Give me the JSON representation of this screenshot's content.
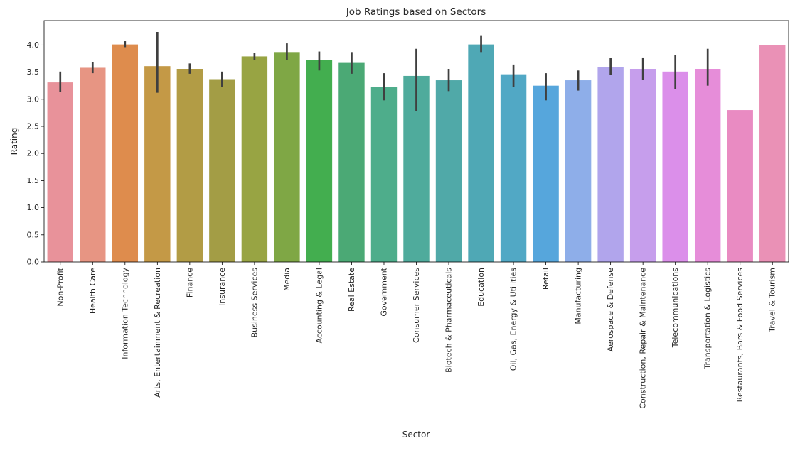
{
  "chart_data": {
    "type": "bar",
    "title": "Job Ratings based on Sectors",
    "xlabel": "Sector",
    "ylabel": "Rating",
    "ylim": [
      0,
      4.45
    ],
    "yticks": [
      0.0,
      0.5,
      1.0,
      1.5,
      2.0,
      2.5,
      3.0,
      3.5,
      4.0
    ],
    "ytick_labels": [
      "0.0",
      "0.5",
      "1.0",
      "1.5",
      "2.0",
      "2.5",
      "3.0",
      "3.5",
      "4.0"
    ],
    "grid": false,
    "error_bars": true,
    "categories": [
      "Non-Profit",
      "Health Care",
      "Information Technology",
      "Arts, Entertainment & Recreation",
      "Finance",
      "Insurance",
      "Business Services",
      "Media",
      "Accounting & Legal",
      "Real Estate",
      "Government",
      "Consumer Services",
      "Biotech & Pharmaceuticals",
      "Education",
      "Oil, Gas, Energy & Utilities",
      "Retail",
      "Manufacturing",
      "Aerospace & Defense",
      "Construction, Repair & Maintenance",
      "Telecommunications",
      "Transportation & Logistics",
      "Restaurants, Bars & Food Services",
      "Travel & Tourism"
    ],
    "values": [
      3.31,
      3.58,
      4.01,
      3.61,
      3.56,
      3.37,
      3.79,
      3.87,
      3.72,
      3.67,
      3.22,
      3.43,
      3.35,
      4.01,
      3.46,
      3.25,
      3.35,
      3.59,
      3.56,
      3.51,
      3.56,
      2.8,
      4.0
    ],
    "ci_low": [
      3.13,
      3.48,
      3.96,
      3.12,
      3.47,
      3.23,
      3.73,
      3.73,
      3.53,
      3.47,
      2.98,
      2.78,
      3.15,
      3.87,
      3.23,
      2.98,
      3.16,
      3.45,
      3.36,
      3.19,
      3.25,
      2.8,
      4.0
    ],
    "ci_high": [
      3.51,
      3.69,
      4.07,
      4.24,
      3.66,
      3.51,
      3.85,
      4.03,
      3.88,
      3.87,
      3.48,
      3.93,
      3.56,
      4.18,
      3.64,
      3.48,
      3.53,
      3.76,
      3.77,
      3.82,
      3.93,
      2.8,
      4.0
    ],
    "colors": [
      "#e8929a",
      "#e79583",
      "#de8c4d",
      "#c49946",
      "#b29c45",
      "#a39d45",
      "#98a443",
      "#7fa745",
      "#43ae4f",
      "#4ba975",
      "#4ead8b",
      "#4fab9c",
      "#50a9a8",
      "#4fa8b5",
      "#51a8c5",
      "#56a6dc",
      "#8eaee9",
      "#b1a5ec",
      "#c69eec",
      "#db8fea",
      "#e68dd9",
      "#e98bc2",
      "#ea91b6"
    ]
  }
}
